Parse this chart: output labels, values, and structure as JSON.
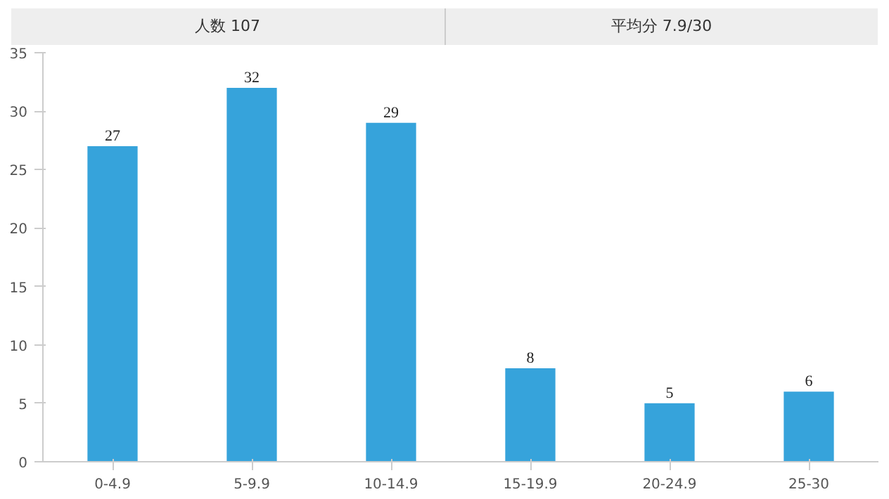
{
  "chart_data": {
    "type": "bar",
    "title": "人数 107",
    "subtitle": "平均分 7.9/30",
    "categories": [
      "0-4.9",
      "5-9.9",
      "10-14.9",
      "15-19.9",
      "20-24.9",
      "25-30"
    ],
    "values": [
      27,
      32,
      29,
      8,
      5,
      6
    ],
    "color": "#36a3db",
    "ylim": [
      0,
      35
    ],
    "yticks": [
      0,
      5,
      10,
      15,
      20,
      25,
      30,
      35
    ],
    "grid": false,
    "data_labels": true
  }
}
